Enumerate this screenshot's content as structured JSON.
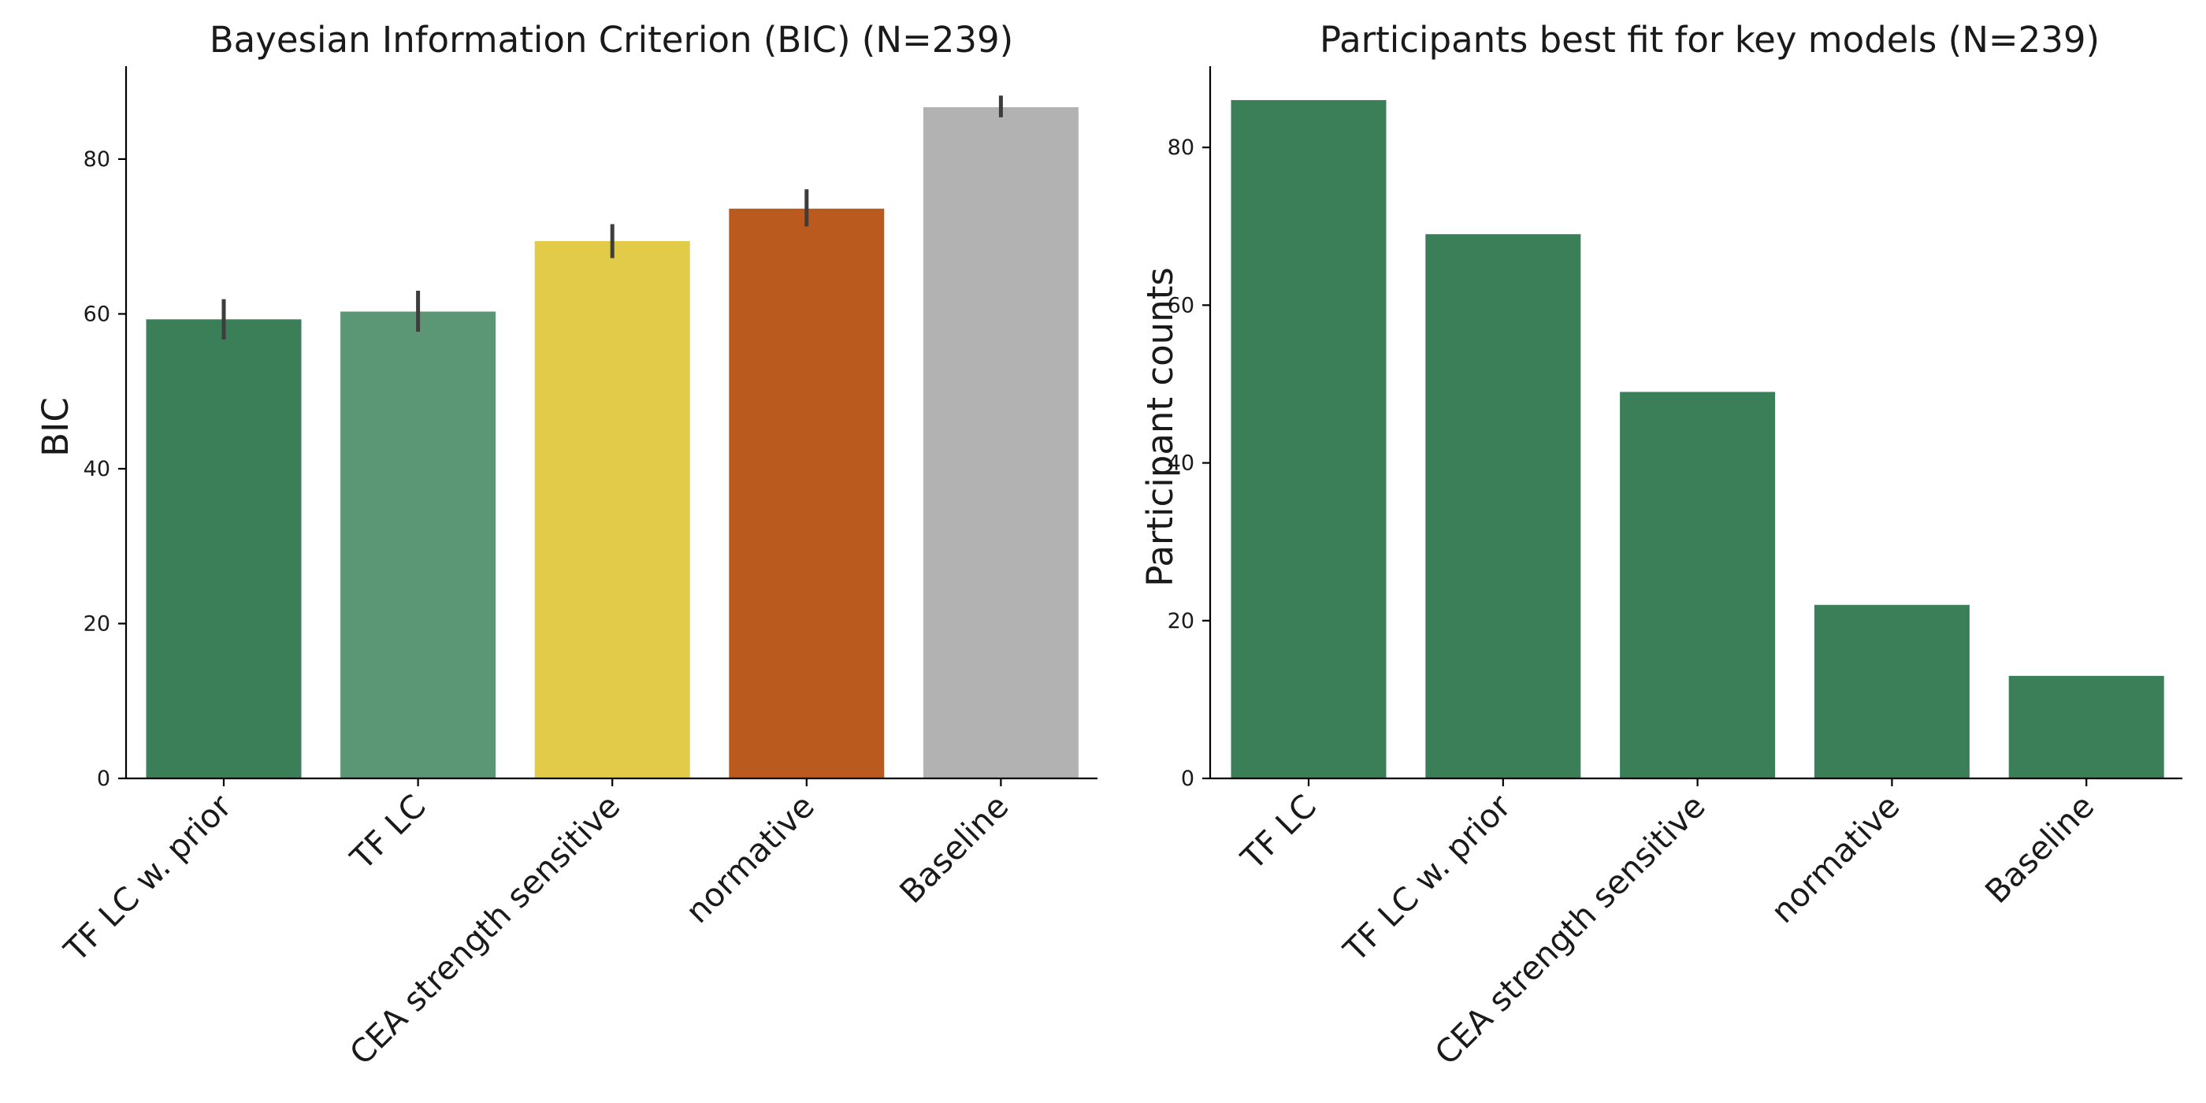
{
  "chart_data": [
    {
      "type": "bar",
      "title": "Bayesian Information Criterion (BIC) (N=239)",
      "ylabel": "BIC",
      "xlabel": "",
      "categories": [
        "TF LC w. prior",
        "TF LC",
        "CEA strength sensitive",
        "normative",
        "Baseline"
      ],
      "values": [
        59.3,
        60.3,
        69.4,
        73.6,
        86.7
      ],
      "error_bars": [
        [
          56.7,
          61.9
        ],
        [
          57.7,
          63.0
        ],
        [
          67.2,
          71.6
        ],
        [
          71.3,
          76.1
        ],
        [
          85.4,
          88.2
        ]
      ],
      "colors": [
        "#3b7f58",
        "#5b9675",
        "#e3cb4a",
        "#bb5a1f",
        "#b2b2b2"
      ],
      "yticks": [
        0,
        20,
        40,
        60,
        80
      ],
      "ylim": [
        0,
        92
      ],
      "grid": false
    },
    {
      "type": "bar",
      "title": "Participants best fit for key models (N=239)",
      "ylabel": "Participant counts",
      "xlabel": "",
      "categories": [
        "TF LC",
        "TF LC w. prior",
        "CEA strength sensitive",
        "normative",
        "Baseline"
      ],
      "values": [
        86,
        69,
        49,
        22,
        13
      ],
      "colors": [
        "#3b7f58",
        "#3b7f58",
        "#3b7f58",
        "#3b7f58",
        "#3b7f58"
      ],
      "yticks": [
        0,
        20,
        40,
        60,
        80
      ],
      "ylim": [
        0,
        90.3
      ],
      "grid": false
    }
  ]
}
